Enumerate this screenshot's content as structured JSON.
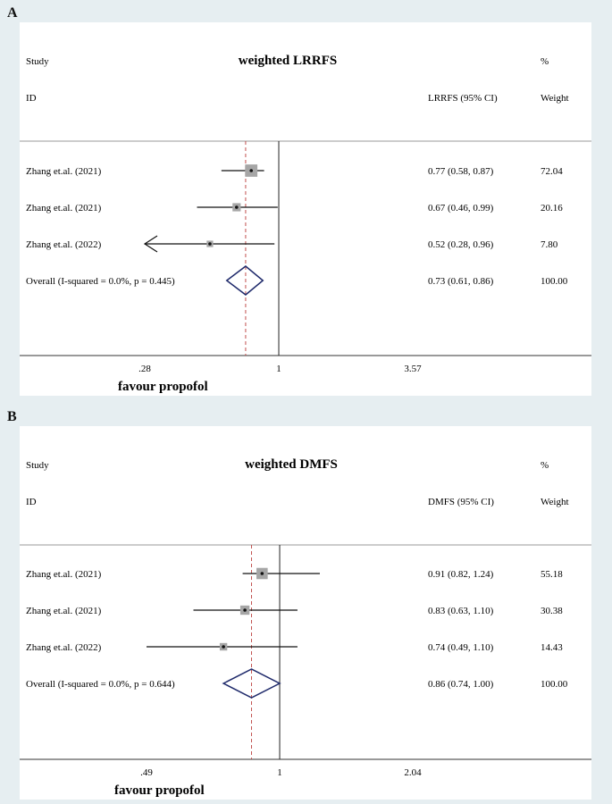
{
  "chart_data": [
    {
      "type": "forest",
      "panel_label": "A",
      "title": "weighted LRRFS",
      "header": {
        "study": "Study",
        "id": "ID",
        "estimate_label": "LRRFS (95% CI)",
        "pct": "%",
        "weight": "Weight"
      },
      "x_scale": "log",
      "x_ticks": [
        ".28",
        "1",
        "3.57"
      ],
      "xlim": [
        0.28,
        3.57
      ],
      "reference_line": 1,
      "pooled_line": 0.73,
      "xlabel": "favour propofol",
      "studies": [
        {
          "label": "Zhang et.al. (2021)",
          "est": 0.77,
          "lo": 0.58,
          "hi": 0.87,
          "ci_text": "0.77 (0.58, 0.87)",
          "weight": 72.04,
          "weight_text": "72.04"
        },
        {
          "label": "Zhang et.al. (2021)",
          "est": 0.67,
          "lo": 0.46,
          "hi": 0.99,
          "ci_text": "0.67 (0.46, 0.99)",
          "weight": 20.16,
          "weight_text": "20.16"
        },
        {
          "label": "Zhang et.al. (2022)",
          "est": 0.52,
          "lo": 0.28,
          "hi": 0.96,
          "ci_text": "0.52 (0.28, 0.96)",
          "weight": 7.8,
          "weight_text": "7.80"
        }
      ],
      "overall": {
        "label": "Overall  (I-squared = 0.0%, p = 0.445)",
        "est": 0.73,
        "lo": 0.61,
        "hi": 0.86,
        "ci_text": "0.73 (0.61, 0.86)",
        "weight_text": "100.00"
      },
      "colors": {
        "diamond": "#1f2a6b",
        "pooled_line": "#c0504d",
        "box": "#a6a6a6"
      }
    },
    {
      "type": "forest",
      "panel_label": "B",
      "title": "weighted DMFS",
      "header": {
        "study": "Study",
        "id": "ID",
        "estimate_label": "DMFS (95% CI)",
        "pct": "%",
        "weight": "Weight"
      },
      "x_scale": "log",
      "x_ticks": [
        ".49",
        "1",
        "2.04"
      ],
      "xlim": [
        0.49,
        2.04
      ],
      "reference_line": 1,
      "pooled_line": 0.86,
      "xlabel": "favour propofol",
      "studies": [
        {
          "label": "Zhang et.al. (2021)",
          "est": 0.91,
          "lo": 0.82,
          "hi": 1.24,
          "ci_text": "0.91 (0.82, 1.24)",
          "weight": 55.18,
          "weight_text": "55.18"
        },
        {
          "label": "Zhang et.al. (2021)",
          "est": 0.83,
          "lo": 0.63,
          "hi": 1.1,
          "ci_text": "0.83 (0.63, 1.10)",
          "weight": 30.38,
          "weight_text": "30.38"
        },
        {
          "label": "Zhang et.al. (2022)",
          "est": 0.74,
          "lo": 0.49,
          "hi": 1.1,
          "ci_text": "0.74 (0.49, 1.10)",
          "weight": 14.43,
          "weight_text": "14.43"
        }
      ],
      "overall": {
        "label": "Overall  (I-squared = 0.0%, p = 0.644)",
        "est": 0.86,
        "lo": 0.74,
        "hi": 1.0,
        "ci_text": "0.86 (0.74, 1.00)",
        "weight_text": "100.00"
      },
      "colors": {
        "diamond": "#1f2a6b",
        "pooled_line": "#c0504d",
        "box": "#a6a6a6"
      }
    }
  ]
}
